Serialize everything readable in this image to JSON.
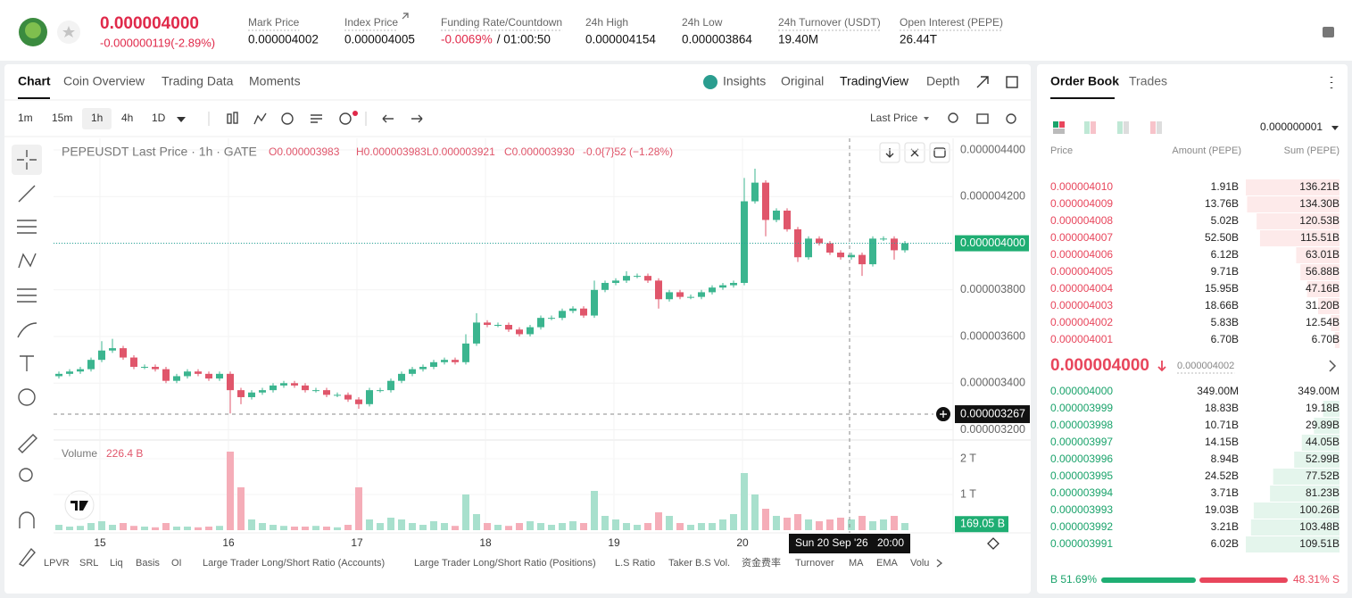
{
  "header": {
    "price": "0.000004000",
    "change": "-0.000000119(-2.89%)",
    "stats": [
      {
        "label": "Mark Price",
        "value": "0.000004002"
      },
      {
        "label": "Index Price",
        "value": "0.000004005"
      },
      {
        "label": "Funding Rate/Countdown",
        "value": "-0.0069%",
        "extra": "/ 01:00:50"
      },
      {
        "label": "24h High",
        "value": "0.000004154"
      },
      {
        "label": "24h Low",
        "value": "0.000003864"
      },
      {
        "label": "24h Turnover (USDT)",
        "value": "19.40M"
      },
      {
        "label": "Open Interest (PEPE)",
        "value": "26.44T"
      }
    ]
  },
  "tabs": [
    "Chart",
    "Coin Overview",
    "Trading Data",
    "Moments"
  ],
  "view_tabs": [
    "Insights",
    "Original",
    "TradingView",
    "Depth"
  ],
  "intervals": [
    "1m",
    "15m",
    "1h",
    "4h",
    "1D"
  ],
  "price_source": "Last Price",
  "chart": {
    "legend": {
      "title": "PEPEUSDT Last Price · 1h · GATE",
      "open": "O0.000003983",
      "high": "H0.000003983",
      "low": "L0.000003921",
      "close": "C0.000003930",
      "change": "-0.0{7}52 (−1.28%)"
    },
    "volume_legend": {
      "label": "Volume",
      "value": "226.4 B"
    },
    "ylim": [
      3.16e-06,
      4.45e-06
    ],
    "yticks": [
      {
        "value": 4.4e-06,
        "label": "0.000004400"
      },
      {
        "value": 4.2e-06,
        "label": "0.000004200"
      },
      {
        "value": 4e-06,
        "label": "0.000004000"
      },
      {
        "value": 3.8e-06,
        "label": "0.000003800"
      },
      {
        "value": 3.6e-06,
        "label": "0.000003600"
      },
      {
        "value": 3.4e-06,
        "label": "0.000003400"
      },
      {
        "value": 3.2e-06,
        "label": "0.000003200"
      }
    ],
    "current_price": {
      "value": 4e-06,
      "label": "0.000004000"
    },
    "crosshair_price": {
      "value": 3.267e-06,
      "label": "0.000003267"
    },
    "crosshair_date": "Sun 20 Sep '26",
    "crosshair_time": "20:00",
    "volume_ylim": [
      0,
      2.5
    ],
    "volume_ticks": [
      {
        "value": 2,
        "label": "2 T"
      },
      {
        "value": 1,
        "label": "1 T"
      }
    ],
    "volume_current": {
      "value": 0.16905,
      "label": "169.05 B"
    },
    "x_labels": [
      "15",
      "16",
      "17",
      "18",
      "19",
      "20"
    ],
    "candles": [
      [
        3.43e-06,
        3.45e-06,
        3.42e-06,
        3.44e-06
      ],
      [
        3.44e-06,
        3.46e-06,
        3.43e-06,
        3.45e-06
      ],
      [
        3.45e-06,
        3.47e-06,
        3.44e-06,
        3.46e-06
      ],
      [
        3.46e-06,
        3.51e-06,
        3.45e-06,
        3.5e-06
      ],
      [
        3.5e-06,
        3.58e-06,
        3.49e-06,
        3.54e-06
      ],
      [
        3.54e-06,
        3.59e-06,
        3.53e-06,
        3.55e-06
      ],
      [
        3.55e-06,
        3.56e-06,
        3.5e-06,
        3.51e-06
      ],
      [
        3.51e-06,
        3.52e-06,
        3.46e-06,
        3.47e-06
      ],
      [
        3.47e-06,
        3.48e-06,
        3.46e-06,
        3.47e-06
      ],
      [
        3.47e-06,
        3.48e-06,
        3.45e-06,
        3.46e-06
      ],
      [
        3.46e-06,
        3.47e-06,
        3.4e-06,
        3.41e-06
      ],
      [
        3.41e-06,
        3.44e-06,
        3.4e-06,
        3.43e-06
      ],
      [
        3.43e-06,
        3.46e-06,
        3.42e-06,
        3.45e-06
      ],
      [
        3.45e-06,
        3.46e-06,
        3.43e-06,
        3.44e-06
      ],
      [
        3.44e-06,
        3.45e-06,
        3.41e-06,
        3.42e-06
      ],
      [
        3.42e-06,
        3.45e-06,
        3.41e-06,
        3.44e-06
      ],
      [
        3.44e-06,
        3.45e-06,
        3.27e-06,
        3.37e-06
      ],
      [
        3.37e-06,
        3.38e-06,
        3.31e-06,
        3.34e-06
      ],
      [
        3.34e-06,
        3.37e-06,
        3.33e-06,
        3.36e-06
      ],
      [
        3.36e-06,
        3.38e-06,
        3.35e-06,
        3.37e-06
      ],
      [
        3.37e-06,
        3.4e-06,
        3.36e-06,
        3.39e-06
      ],
      [
        3.39e-06,
        3.41e-06,
        3.38e-06,
        3.4e-06
      ],
      [
        3.4e-06,
        3.41e-06,
        3.38e-06,
        3.39e-06
      ],
      [
        3.39e-06,
        3.4e-06,
        3.36e-06,
        3.37e-06
      ],
      [
        3.37e-06,
        3.38e-06,
        3.36e-06,
        3.37e-06
      ],
      [
        3.37e-06,
        3.38e-06,
        3.34e-06,
        3.35e-06
      ],
      [
        3.35e-06,
        3.36e-06,
        3.34e-06,
        3.35e-06
      ],
      [
        3.35e-06,
        3.36e-06,
        3.32e-06,
        3.33e-06
      ],
      [
        3.33e-06,
        3.34e-06,
        3.29e-06,
        3.31e-06
      ],
      [
        3.31e-06,
        3.38e-06,
        3.3e-06,
        3.37e-06
      ],
      [
        3.37e-06,
        3.38e-06,
        3.36e-06,
        3.37e-06
      ],
      [
        3.37e-06,
        3.42e-06,
        3.36e-06,
        3.41e-06
      ],
      [
        3.41e-06,
        3.45e-06,
        3.4e-06,
        3.44e-06
      ],
      [
        3.44e-06,
        3.47e-06,
        3.43e-06,
        3.46e-06
      ],
      [
        3.46e-06,
        3.48e-06,
        3.45e-06,
        3.47e-06
      ],
      [
        3.47e-06,
        3.5e-06,
        3.46e-06,
        3.49e-06
      ],
      [
        3.49e-06,
        3.51e-06,
        3.48e-06,
        3.5e-06
      ],
      [
        3.5e-06,
        3.51e-06,
        3.48e-06,
        3.49e-06
      ],
      [
        3.49e-06,
        3.61e-06,
        3.48e-06,
        3.57e-06
      ],
      [
        3.57e-06,
        3.7e-06,
        3.56e-06,
        3.66e-06
      ],
      [
        3.66e-06,
        3.67e-06,
        3.64e-06,
        3.65e-06
      ],
      [
        3.65e-06,
        3.66e-06,
        3.64e-06,
        3.65e-06
      ],
      [
        3.65e-06,
        3.66e-06,
        3.62e-06,
        3.63e-06
      ],
      [
        3.63e-06,
        3.64e-06,
        3.6e-06,
        3.61e-06
      ],
      [
        3.61e-06,
        3.65e-06,
        3.6e-06,
        3.64e-06
      ],
      [
        3.64e-06,
        3.69e-06,
        3.63e-06,
        3.68e-06
      ],
      [
        3.68e-06,
        3.69e-06,
        3.67e-06,
        3.68e-06
      ],
      [
        3.68e-06,
        3.72e-06,
        3.67e-06,
        3.71e-06
      ],
      [
        3.71e-06,
        3.73e-06,
        3.7e-06,
        3.72e-06
      ],
      [
        3.72e-06,
        3.73e-06,
        3.68e-06,
        3.69e-06
      ],
      [
        3.69e-06,
        3.84e-06,
        3.68e-06,
        3.8e-06
      ],
      [
        3.8e-06,
        3.84e-06,
        3.79e-06,
        3.83e-06
      ],
      [
        3.83e-06,
        3.85e-06,
        3.82e-06,
        3.84e-06
      ],
      [
        3.84e-06,
        3.88e-06,
        3.83e-06,
        3.86e-06
      ],
      [
        3.86e-06,
        3.87e-06,
        3.85e-06,
        3.86e-06
      ],
      [
        3.86e-06,
        3.87e-06,
        3.83e-06,
        3.84e-06
      ],
      [
        3.84e-06,
        3.85e-06,
        3.72e-06,
        3.76e-06
      ],
      [
        3.76e-06,
        3.8e-06,
        3.75e-06,
        3.79e-06
      ],
      [
        3.79e-06,
        3.8e-06,
        3.76e-06,
        3.77e-06
      ],
      [
        3.77e-06,
        3.78e-06,
        3.76e-06,
        3.77e-06
      ],
      [
        3.77e-06,
        3.8e-06,
        3.76e-06,
        3.79e-06
      ],
      [
        3.79e-06,
        3.82e-06,
        3.78e-06,
        3.81e-06
      ],
      [
        3.81e-06,
        3.83e-06,
        3.8e-06,
        3.82e-06
      ],
      [
        3.82e-06,
        3.84e-06,
        3.81e-06,
        3.83e-06
      ],
      [
        3.83e-06,
        4.28e-06,
        3.82e-06,
        4.18e-06
      ],
      [
        4.18e-06,
        4.32e-06,
        4.17e-06,
        4.26e-06
      ],
      [
        4.26e-06,
        4.27e-06,
        4.03e-06,
        4.1e-06
      ],
      [
        4.1e-06,
        4.15e-06,
        4.09e-06,
        4.14e-06
      ],
      [
        4.14e-06,
        4.15e-06,
        4.05e-06,
        4.06e-06
      ],
      [
        4.06e-06,
        4.07e-06,
        3.92e-06,
        3.94e-06
      ],
      [
        3.94e-06,
        4.03e-06,
        3.93e-06,
        4.02e-06
      ],
      [
        4.02e-06,
        4.03e-06,
        3.99e-06,
        4e-06
      ],
      [
        4e-06,
        4.01e-06,
        3.95e-06,
        3.96e-06
      ],
      [
        3.96e-06,
        3.97e-06,
        3.93e-06,
        3.94e-06
      ],
      [
        3.94e-06,
        3.96e-06,
        3.93e-06,
        3.95e-06
      ],
      [
        3.95e-06,
        3.96e-06,
        3.86e-06,
        3.91e-06
      ],
      [
        3.91e-06,
        4.03e-06,
        3.9e-06,
        4.02e-06
      ],
      [
        4.02e-06,
        4.03e-06,
        4.01e-06,
        4.02e-06
      ],
      [
        4.02e-06,
        4.03e-06,
        3.93e-06,
        3.97e-06
      ],
      [
        3.97e-06,
        4.01e-06,
        3.96e-06,
        4e-06
      ]
    ],
    "volumes": [
      0.15,
      0.1,
      0.12,
      0.2,
      0.25,
      0.15,
      0.2,
      0.12,
      0.1,
      0.08,
      0.2,
      0.1,
      0.1,
      0.08,
      0.1,
      0.12,
      2.2,
      1.2,
      0.3,
      0.2,
      0.15,
      0.12,
      0.1,
      0.1,
      0.12,
      0.1,
      0.08,
      0.15,
      1.2,
      0.3,
      0.2,
      0.35,
      0.3,
      0.2,
      0.15,
      0.25,
      0.2,
      0.12,
      1.0,
      0.45,
      0.2,
      0.15,
      0.12,
      0.2,
      0.25,
      0.2,
      0.15,
      0.2,
      0.25,
      0.2,
      1.1,
      0.4,
      0.3,
      0.2,
      0.15,
      0.2,
      0.5,
      0.4,
      0.2,
      0.15,
      0.2,
      0.2,
      0.3,
      0.45,
      1.6,
      1.0,
      0.6,
      0.4,
      0.35,
      0.45,
      0.3,
      0.25,
      0.3,
      0.35,
      0.3,
      0.4,
      0.25,
      0.3,
      0.4,
      0.2
    ]
  },
  "indicators": [
    "LPVR",
    "SRL",
    "Liq",
    "Basis",
    "OI",
    "Large Trader Long/Short Ratio (Accounts)",
    "Large Trader Long/Short Ratio (Positions)",
    "L.S Ratio",
    "Taker B.S Vol.",
    "资金费率",
    "Turnover",
    "MA",
    "EMA",
    "Volu"
  ],
  "order_book": {
    "tabs": [
      "Order Book",
      "Trades"
    ],
    "precision": "0.000000001",
    "columns": [
      "Price",
      "Amount (PEPE)",
      "Sum (PEPE)"
    ],
    "asks": [
      {
        "price": "0.000004010",
        "amount": "1.91B",
        "sum": {
          "value": 136.21,
          "label": "136.21B"
        }
      },
      {
        "price": "0.000004009",
        "amount": "13.76B",
        "sum": {
          "value": 134.3,
          "label": "134.30B"
        }
      },
      {
        "price": "0.000004008",
        "amount": "5.02B",
        "sum": {
          "value": 120.53,
          "label": "120.53B"
        }
      },
      {
        "price": "0.000004007",
        "amount": "52.50B",
        "sum": {
          "value": 115.51,
          "label": "115.51B"
        }
      },
      {
        "price": "0.000004006",
        "amount": "6.12B",
        "sum": {
          "value": 63.01,
          "label": "63.01B"
        }
      },
      {
        "price": "0.000004005",
        "amount": "9.71B",
        "sum": {
          "value": 56.88,
          "label": "56.88B"
        }
      },
      {
        "price": "0.000004004",
        "amount": "15.95B",
        "sum": {
          "value": 47.16,
          "label": "47.16B"
        }
      },
      {
        "price": "0.000004003",
        "amount": "18.66B",
        "sum": {
          "value": 31.2,
          "label": "31.20B"
        }
      },
      {
        "price": "0.000004002",
        "amount": "5.83B",
        "sum": {
          "value": 12.54,
          "label": "12.54B"
        }
      },
      {
        "price": "0.000004001",
        "amount": "6.70B",
        "sum": {
          "value": 6.7,
          "label": "6.70B"
        }
      }
    ],
    "mid_price": "0.000004000",
    "mark_price": "0.000004002",
    "bids": [
      {
        "price": "0.000004000",
        "amount": "349.00M",
        "sum": {
          "value": 0.349,
          "label": "349.00M"
        }
      },
      {
        "price": "0.000003999",
        "amount": "18.83B",
        "sum": {
          "value": 19.18,
          "label": "19.18B"
        }
      },
      {
        "price": "0.000003998",
        "amount": "10.71B",
        "sum": {
          "value": 29.89,
          "label": "29.89B"
        }
      },
      {
        "price": "0.000003997",
        "amount": "14.15B",
        "sum": {
          "value": 44.05,
          "label": "44.05B"
        }
      },
      {
        "price": "0.000003996",
        "amount": "8.94B",
        "sum": {
          "value": 52.99,
          "label": "52.99B"
        }
      },
      {
        "price": "0.000003995",
        "amount": "24.52B",
        "sum": {
          "value": 77.52,
          "label": "77.52B"
        }
      },
      {
        "price": "0.000003994",
        "amount": "3.71B",
        "sum": {
          "value": 81.23,
          "label": "81.23B"
        }
      },
      {
        "price": "0.000003993",
        "amount": "19.03B",
        "sum": {
          "value": 100.26,
          "label": "100.26B"
        }
      },
      {
        "price": "0.000003992",
        "amount": "3.21B",
        "sum": {
          "value": 103.48,
          "label": "103.48B"
        }
      },
      {
        "price": "0.000003991",
        "amount": "6.02B",
        "sum": {
          "value": 109.51,
          "label": "109.51B"
        }
      }
    ],
    "buy_ratio": {
      "value": 51.69,
      "label": "B 51.69%"
    },
    "sell_ratio": {
      "value": 48.31,
      "label": "48.31% S"
    }
  }
}
